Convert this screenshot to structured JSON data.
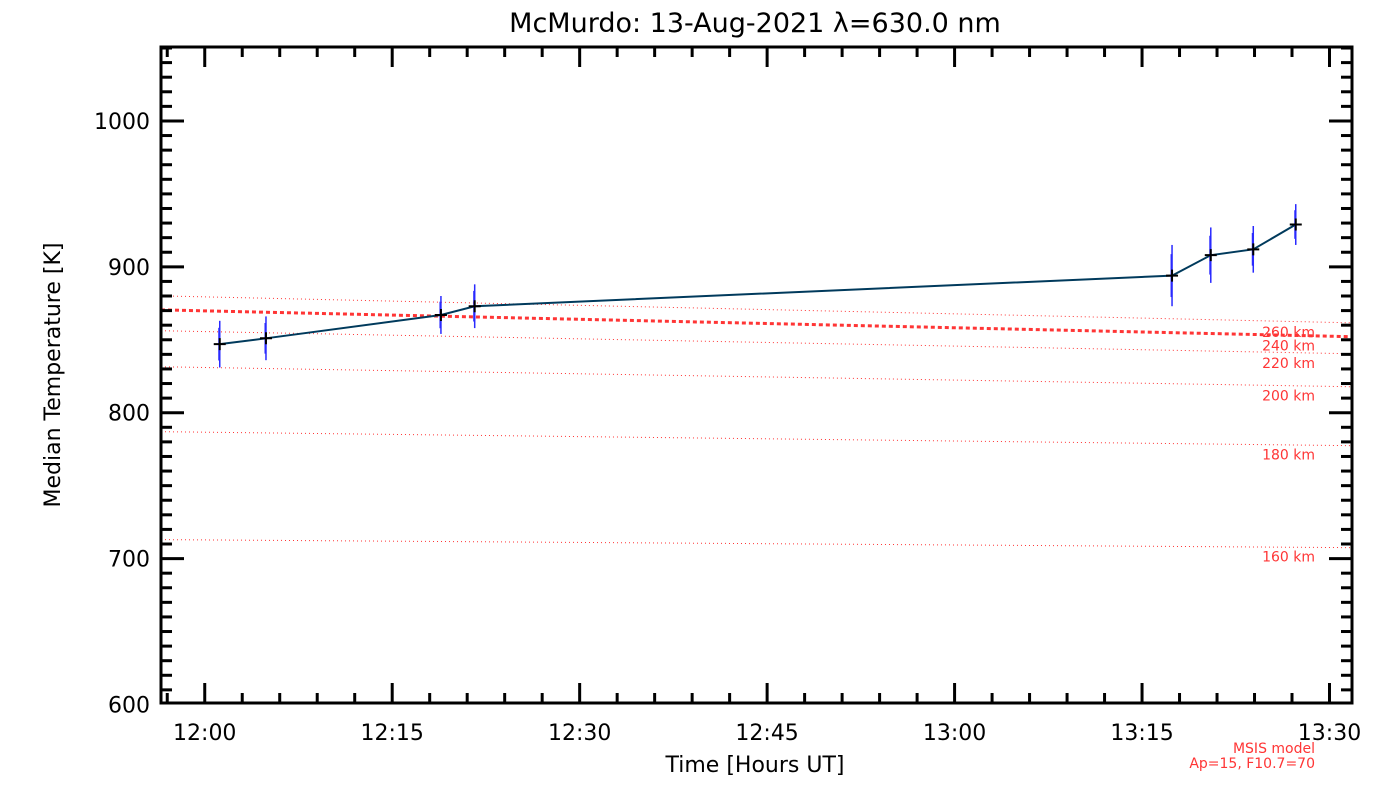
{
  "chart_data": {
    "type": "line",
    "title": "McMurdo: 13-Aug-2021 λ=630.0 nm",
    "xlabel": "Time [Hours UT]",
    "ylabel": "Median Temperature [K]",
    "x_units": "minutes after 12:00 UT",
    "xlim": [
      -3.5,
      91.8
    ],
    "ylim": [
      601,
      1050.7
    ],
    "x_ticks": [
      0,
      15,
      30,
      45,
      60,
      75,
      90
    ],
    "x_tick_labels": [
      "12:00",
      "12:15",
      "12:30",
      "12:45",
      "13:00",
      "13:15",
      "13:30"
    ],
    "x_minor_step": 3,
    "y_ticks": [
      600,
      700,
      800,
      900,
      1000
    ],
    "y_tick_labels": [
      "600",
      "700",
      "800",
      "900",
      "1000"
    ],
    "y_minor_step": 10,
    "grid": false,
    "series": [
      {
        "name": "Median temperature",
        "color": "#003a5c",
        "error_color": "#2a2aff",
        "x": [
          1.2,
          4.9,
          18.9,
          21.6,
          77.4,
          80.5,
          83.9,
          87.3
        ],
        "y": [
          847,
          851,
          867,
          873,
          894,
          908,
          912,
          929
        ],
        "error": [
          16,
          15,
          13,
          15,
          21,
          19,
          16,
          14
        ]
      }
    ],
    "model_lines": [
      {
        "label": "260 km",
        "y_start": 880.1,
        "y_end": 861.6,
        "thick": false
      },
      {
        "label": "240 km",
        "y_start": 870.5,
        "y_end": 852.1,
        "thick": true
      },
      {
        "label": "220 km",
        "y_start": 856.2,
        "y_end": 840.4,
        "thick": false
      },
      {
        "label": "200 km",
        "y_start": 831.5,
        "y_end": 817.8,
        "thick": false
      },
      {
        "label": "180 km",
        "y_start": 787.0,
        "y_end": 777.4,
        "thick": false
      },
      {
        "label": "160 km",
        "y_start": 713.0,
        "y_end": 707.5,
        "thick": false
      }
    ],
    "model_color": "#ff3535",
    "annotations": [
      "MSIS model",
      "Ap=15, F10.7=70"
    ]
  }
}
